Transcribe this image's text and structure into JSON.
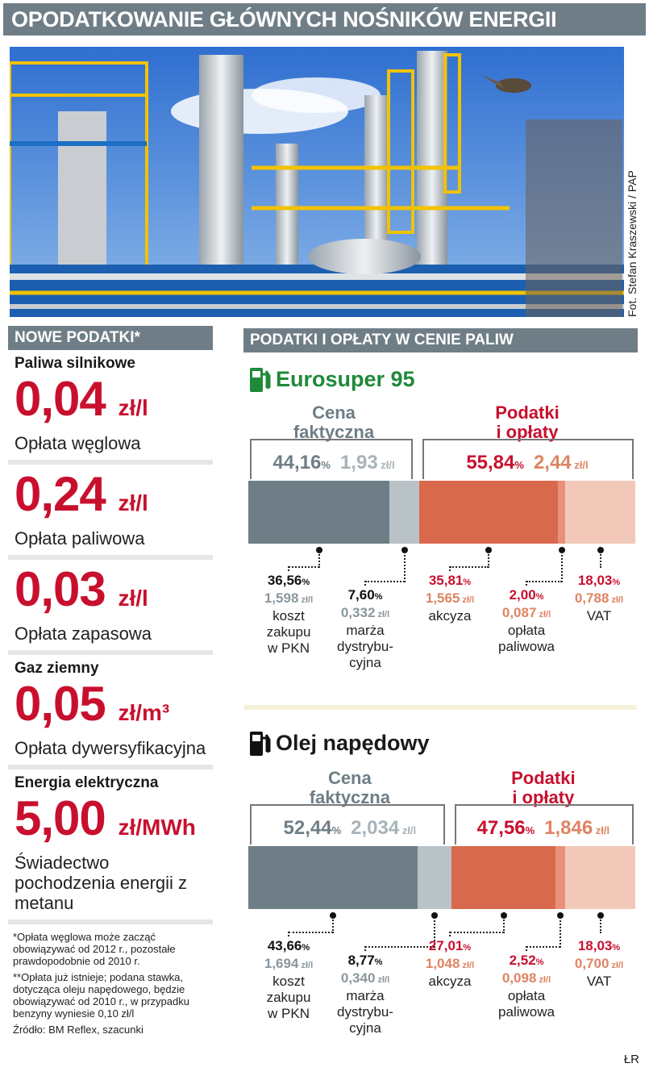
{
  "header": {
    "title": "OPODATKOWANIE GŁÓWNYCH NOŚNIKÓW ENERGII"
  },
  "photo": {
    "credit": "Fot. Stefan Kraszewski / PAP"
  },
  "new_taxes": {
    "header": "NOWE PODATKI*",
    "motor_fuels": {
      "title": "Paliwa silnikowe",
      "items": [
        {
          "value": "0,04",
          "unit": "zł/l",
          "desc": "Opłata węglowa"
        },
        {
          "value": "0,24",
          "unit": "zł/l",
          "desc": "Opłata paliwowa"
        },
        {
          "value": "0,03",
          "unit": "zł/l",
          "desc": "Opłata zapasowa"
        }
      ]
    },
    "gas": {
      "title": "Gaz ziemny",
      "value": "0,05",
      "unit": "zł/m³",
      "desc": "Opłata dywersyfikacyjna"
    },
    "electricity": {
      "title": "Energia elektryczna",
      "value": "5,00",
      "unit": "zł/MWh",
      "desc": "Świadectwo pochodzenia energii z metanu"
    },
    "footnotes": [
      "*Opłata węglowa może zacząć obowiązywać od 2012 r., pozostałe prawdopodobnie od 2010 r.",
      "**Opłata już istnieje; podana stawka, dotycząca oleju napędowego, będzie obowiązywać od 2010 r., w przypadku benzyny wyniesie 0,10 zł/l",
      "Źródło: BM Reflex, szacunki"
    ]
  },
  "fuel_taxes": {
    "header": "PODATKI I OPŁATY W CENIE PALIW"
  },
  "chart_data": [
    {
      "type": "bar",
      "title": "Eurosuper 95",
      "groups": [
        {
          "label": "Cena faktyczna",
          "pct": "44,16",
          "value": "1,93"
        },
        {
          "label": "Podatki i opłaty",
          "pct": "55,84",
          "value": "2,44"
        }
      ],
      "segments": [
        {
          "name": "koszt zakupu w PKN",
          "pct": 36.56,
          "pct_label": "36,56",
          "value": "1,598",
          "color": "#6f7e86"
        },
        {
          "name": "marża dystrybucyjna",
          "pct": 7.6,
          "pct_label": "7,60",
          "value": "0,332",
          "color": "#b8c2c7"
        },
        {
          "name": "akcyza",
          "pct": 35.81,
          "pct_label": "35,81",
          "value": "1,565",
          "color": "#d9694d"
        },
        {
          "name": "opłata paliwowa",
          "pct": 2.0,
          "pct_label": "2,00",
          "value": "0,087",
          "color": "#e9907a"
        },
        {
          "name": "VAT",
          "pct": 18.03,
          "pct_label": "18,03",
          "value": "0,788",
          "color": "#f2c9b9"
        }
      ]
    },
    {
      "type": "bar",
      "title": "Olej napędowy",
      "groups": [
        {
          "label": "Cena faktyczna",
          "pct": "52,44",
          "value": "2,034"
        },
        {
          "label": "Podatki i opłaty",
          "pct": "47,56",
          "value": "1,846"
        }
      ],
      "segments": [
        {
          "name": "koszt zakupu w PKN",
          "pct": 43.66,
          "pct_label": "43,66",
          "value": "1,694",
          "color": "#6f7e86"
        },
        {
          "name": "marża dystrybucyjna",
          "pct": 8.77,
          "pct_label": "8,77",
          "value": "0,340",
          "color": "#b8c2c7"
        },
        {
          "name": "akcyza",
          "pct": 27.01,
          "pct_label": "27,01",
          "value": "1,048",
          "color": "#d9694d"
        },
        {
          "name": "opłata paliwowa",
          "pct": 2.52,
          "pct_label": "2,52",
          "value": "0,098",
          "color": "#e9907a"
        },
        {
          "name": "VAT",
          "pct": 18.03,
          "pct_label": "18,03",
          "value": "0,700",
          "color": "#f2c9b9"
        }
      ]
    }
  ],
  "labels": {
    "pct": "%",
    "unit_l": "zł/l",
    "seg1": [
      "koszt",
      "zakupu",
      "w PKN"
    ],
    "seg2": [
      "marża",
      "dystrybu-",
      "cyjna"
    ],
    "seg3": [
      "akcyza"
    ],
    "seg4": [
      "opłata",
      "paliwowa"
    ],
    "seg5": [
      "VAT"
    ]
  },
  "credit": "ŁR"
}
